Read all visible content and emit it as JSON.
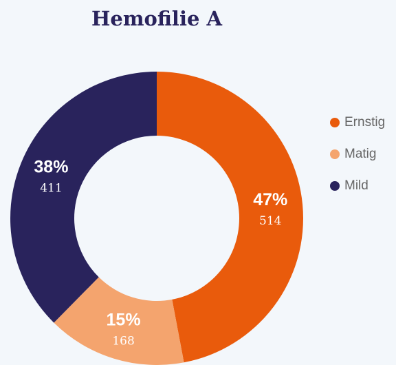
{
  "chart_data": {
    "type": "donut",
    "title": "Hemofilie A",
    "categories": [
      "Ernstig",
      "Matig",
      "Mild"
    ],
    "values": [
      514,
      168,
      411
    ],
    "percent_labels": [
      "47%",
      "15%",
      "38%"
    ],
    "colors": [
      "#e95b0c",
      "#f4a46e",
      "#29235c"
    ],
    "legend": "right"
  }
}
